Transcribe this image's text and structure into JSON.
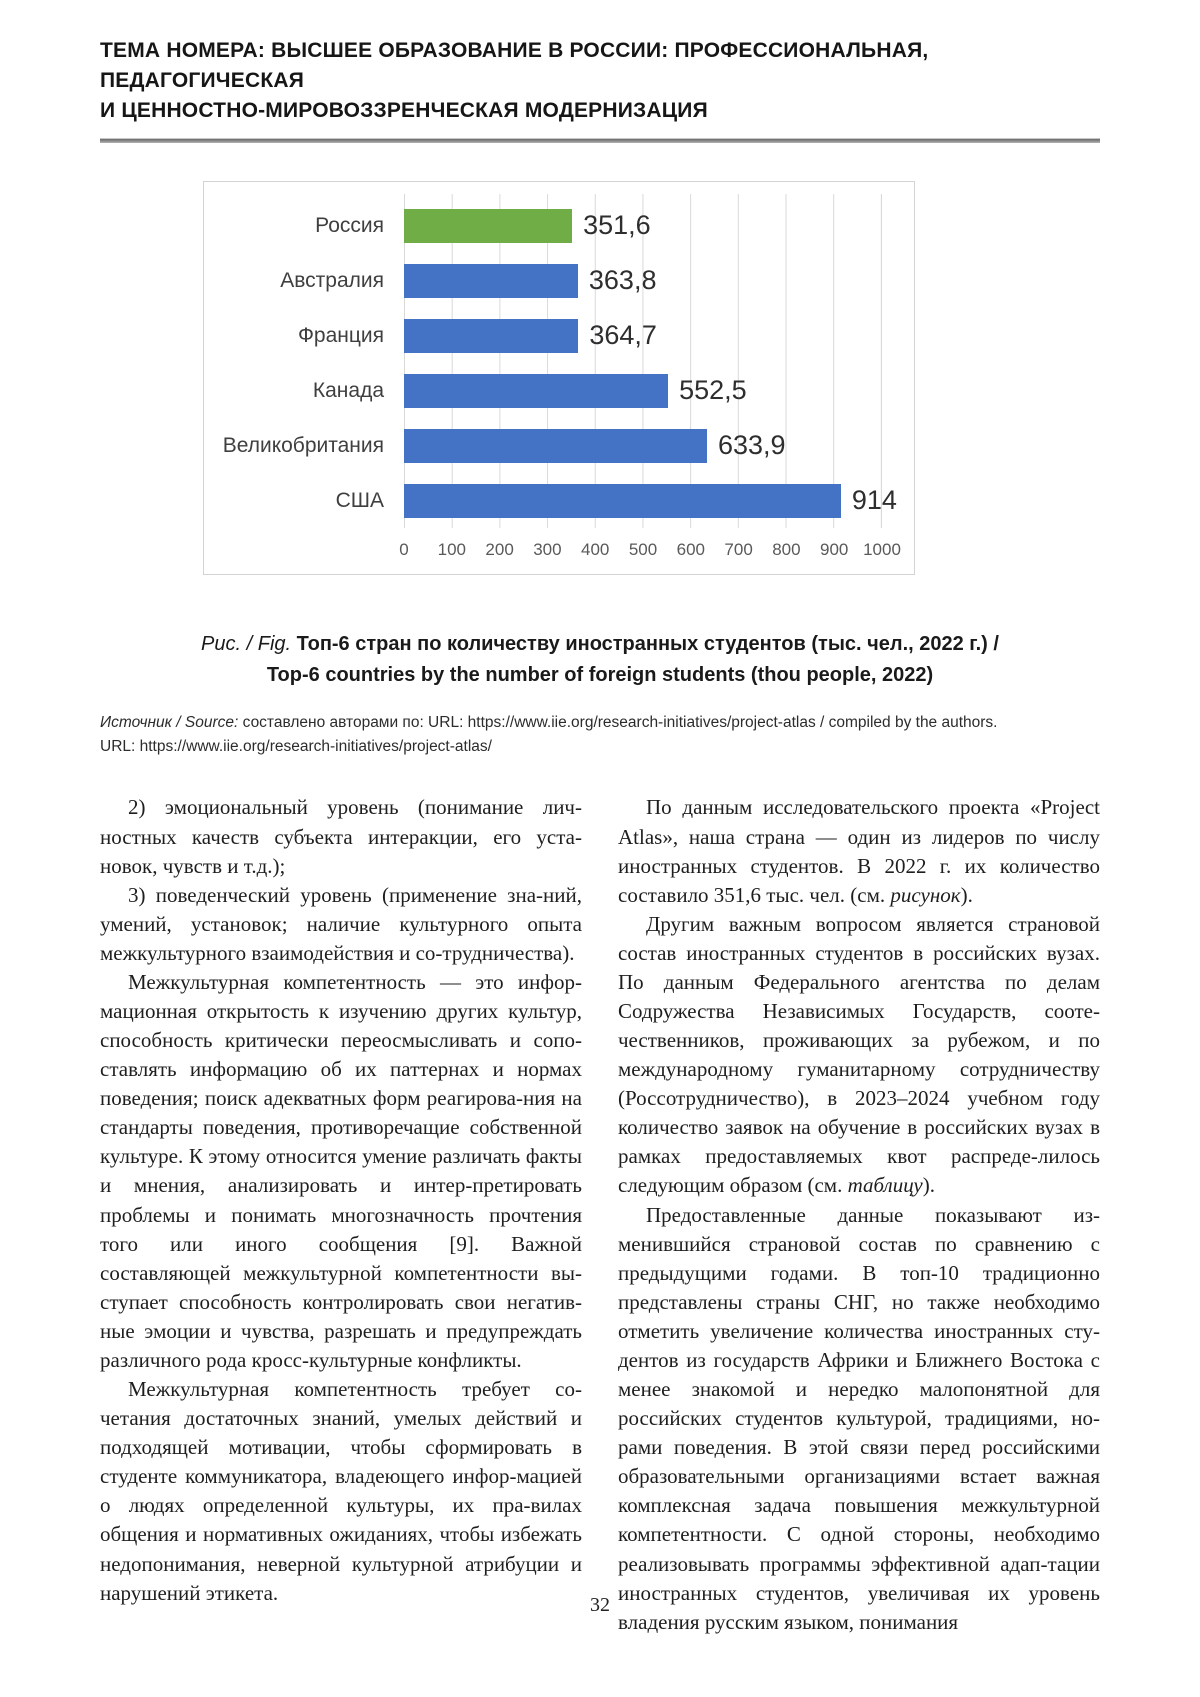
{
  "header": {
    "line1": "ТЕМА НОМЕРА: ВЫСШЕЕ ОБРАЗОВАНИЕ В РОССИИ: ПРОФЕССИОНАЛЬНАЯ, ПЕДАГОГИЧЕСКАЯ",
    "line2": "И ЦЕННОСТНО-МИРОВОЗЗРЕНЧЕСКАЯ МОДЕРНИЗАЦИЯ"
  },
  "chart_data": {
    "type": "bar",
    "orientation": "horizontal",
    "title": "",
    "categories": [
      "Россия",
      "Австралия",
      "Франция",
      "Канада",
      "Великобритания",
      "США"
    ],
    "values": [
      351.6,
      363.8,
      364.7,
      552.5,
      633.9,
      914
    ],
    "value_labels": [
      "351,6",
      "363,8",
      "364,7",
      "552,5",
      "633,9",
      "914"
    ],
    "bar_colors": [
      "#70AD47",
      "#4472C4",
      "#4472C4",
      "#4472C4",
      "#4472C4",
      "#4472C4"
    ],
    "xlim": [
      0,
      1000
    ],
    "x_ticks": [
      "0",
      "100",
      "200",
      "300",
      "400",
      "500",
      "600",
      "700",
      "800",
      "900",
      "1000"
    ],
    "grid": true,
    "legend": false,
    "gridline_color": "#d9d9d9"
  },
  "figure": {
    "caption_prefix": "Рис. / Fig. ",
    "caption_line1": "Топ-6 стран по количеству иностранных студентов (тыс. чел., 2022 г.) /",
    "caption_line2": "Top-6 countries by the number of foreign students (thou people, 2022)",
    "source_label": "Источник / Source: ",
    "source_line1": "составлено авторами по: URL: https://www.iie.org/research-initiatives/project-atlas / compiled by the authors.",
    "source_line2": "URL: https://www.iie.org/research-initiatives/project-atlas/"
  },
  "body": {
    "left": [
      [
        {
          "t": "2) эмоциональный уровень (понимание лич-ностных качеств субъекта интеракции, его уста-новок, чувств и т.д.);"
        }
      ],
      [
        {
          "t": "3) поведенческий уровень (применение зна-ний, умений, установок; наличие культурного опыта межкультурного взаимодействия и со-трудничества)."
        }
      ],
      [
        {
          "t": "Межкультурная компетентность — это инфор-мационная открытость к изучению других культур, способность критически переосмысливать и сопо-ставлять информацию об их паттернах и нормах поведения; поиск адекватных форм реагирова-ния на стандарты поведения, противоречащие собственной культуре. К этому относится умение различать факты и мнения, анализировать и интер-претировать проблемы и понимать многозначность прочтения того или иного сообщения [9]. Важной составляющей межкультурной компетентности вы-ступает способность контролировать свои негатив-ные эмоции и чувства, разрешать и предупреждать различного рода кросс-культурные конфликты."
        }
      ],
      [
        {
          "t": "Межкультурная компетентность требует со-четания достаточных знаний, умелых действий и подходящей мотивации, чтобы сформировать в студенте коммуникатора, владеющего инфор-мацией о людях определенной культуры, их пра-вилах общения и нормативных ожиданиях, чтобы избежать недопонимания, неверной культурной атрибуции и нарушений этикета."
        }
      ]
    ],
    "right": [
      [
        {
          "t": "По данным исследовательского проекта «Project Atlas», наша страна — один из лидеров по числу иностранных студентов. В 2022 г. их количество составило 351,6 тыс. чел. (см. "
        },
        {
          "t": "рисунок",
          "i": true
        },
        {
          "t": ")."
        }
      ],
      [
        {
          "t": "Другим важным вопросом является страновой состав иностранных студентов в российских вузах. По данным Федерального агентства по делам Содружества Независимых Государств, сооте-чественников, проживающих за рубежом, и по международному гуманитарному сотрудничеству (Россотрудничество), в 2023–2024 учебном году количество заявок на обучение в российских вузах в рамках предоставляемых квот распреде-лилось следующим образом (см. "
        },
        {
          "t": "таблицу",
          "i": true
        },
        {
          "t": ")."
        }
      ],
      [
        {
          "t": "Предоставленные данные показывают из-менившийся страновой состав по сравнению с предыдущими годами. В топ-10 традиционно представлены страны СНГ, но также необходимо отметить увеличение количества иностранных сту-дентов из государств Африки и Ближнего Востока с менее знакомой и нередко малопонятной для российских студентов культурой, традициями, но-рами поведения. В этой связи перед российскими образовательными организациями встает важная комплексная задача повышения межкультурной компетентности. С одной стороны, необходимо реализовывать программы эффективной адап-тации иностранных студентов, увеличивая их уровень владения русским языком, понимания"
        }
      ]
    ]
  },
  "footer": {
    "page_number": "32"
  }
}
